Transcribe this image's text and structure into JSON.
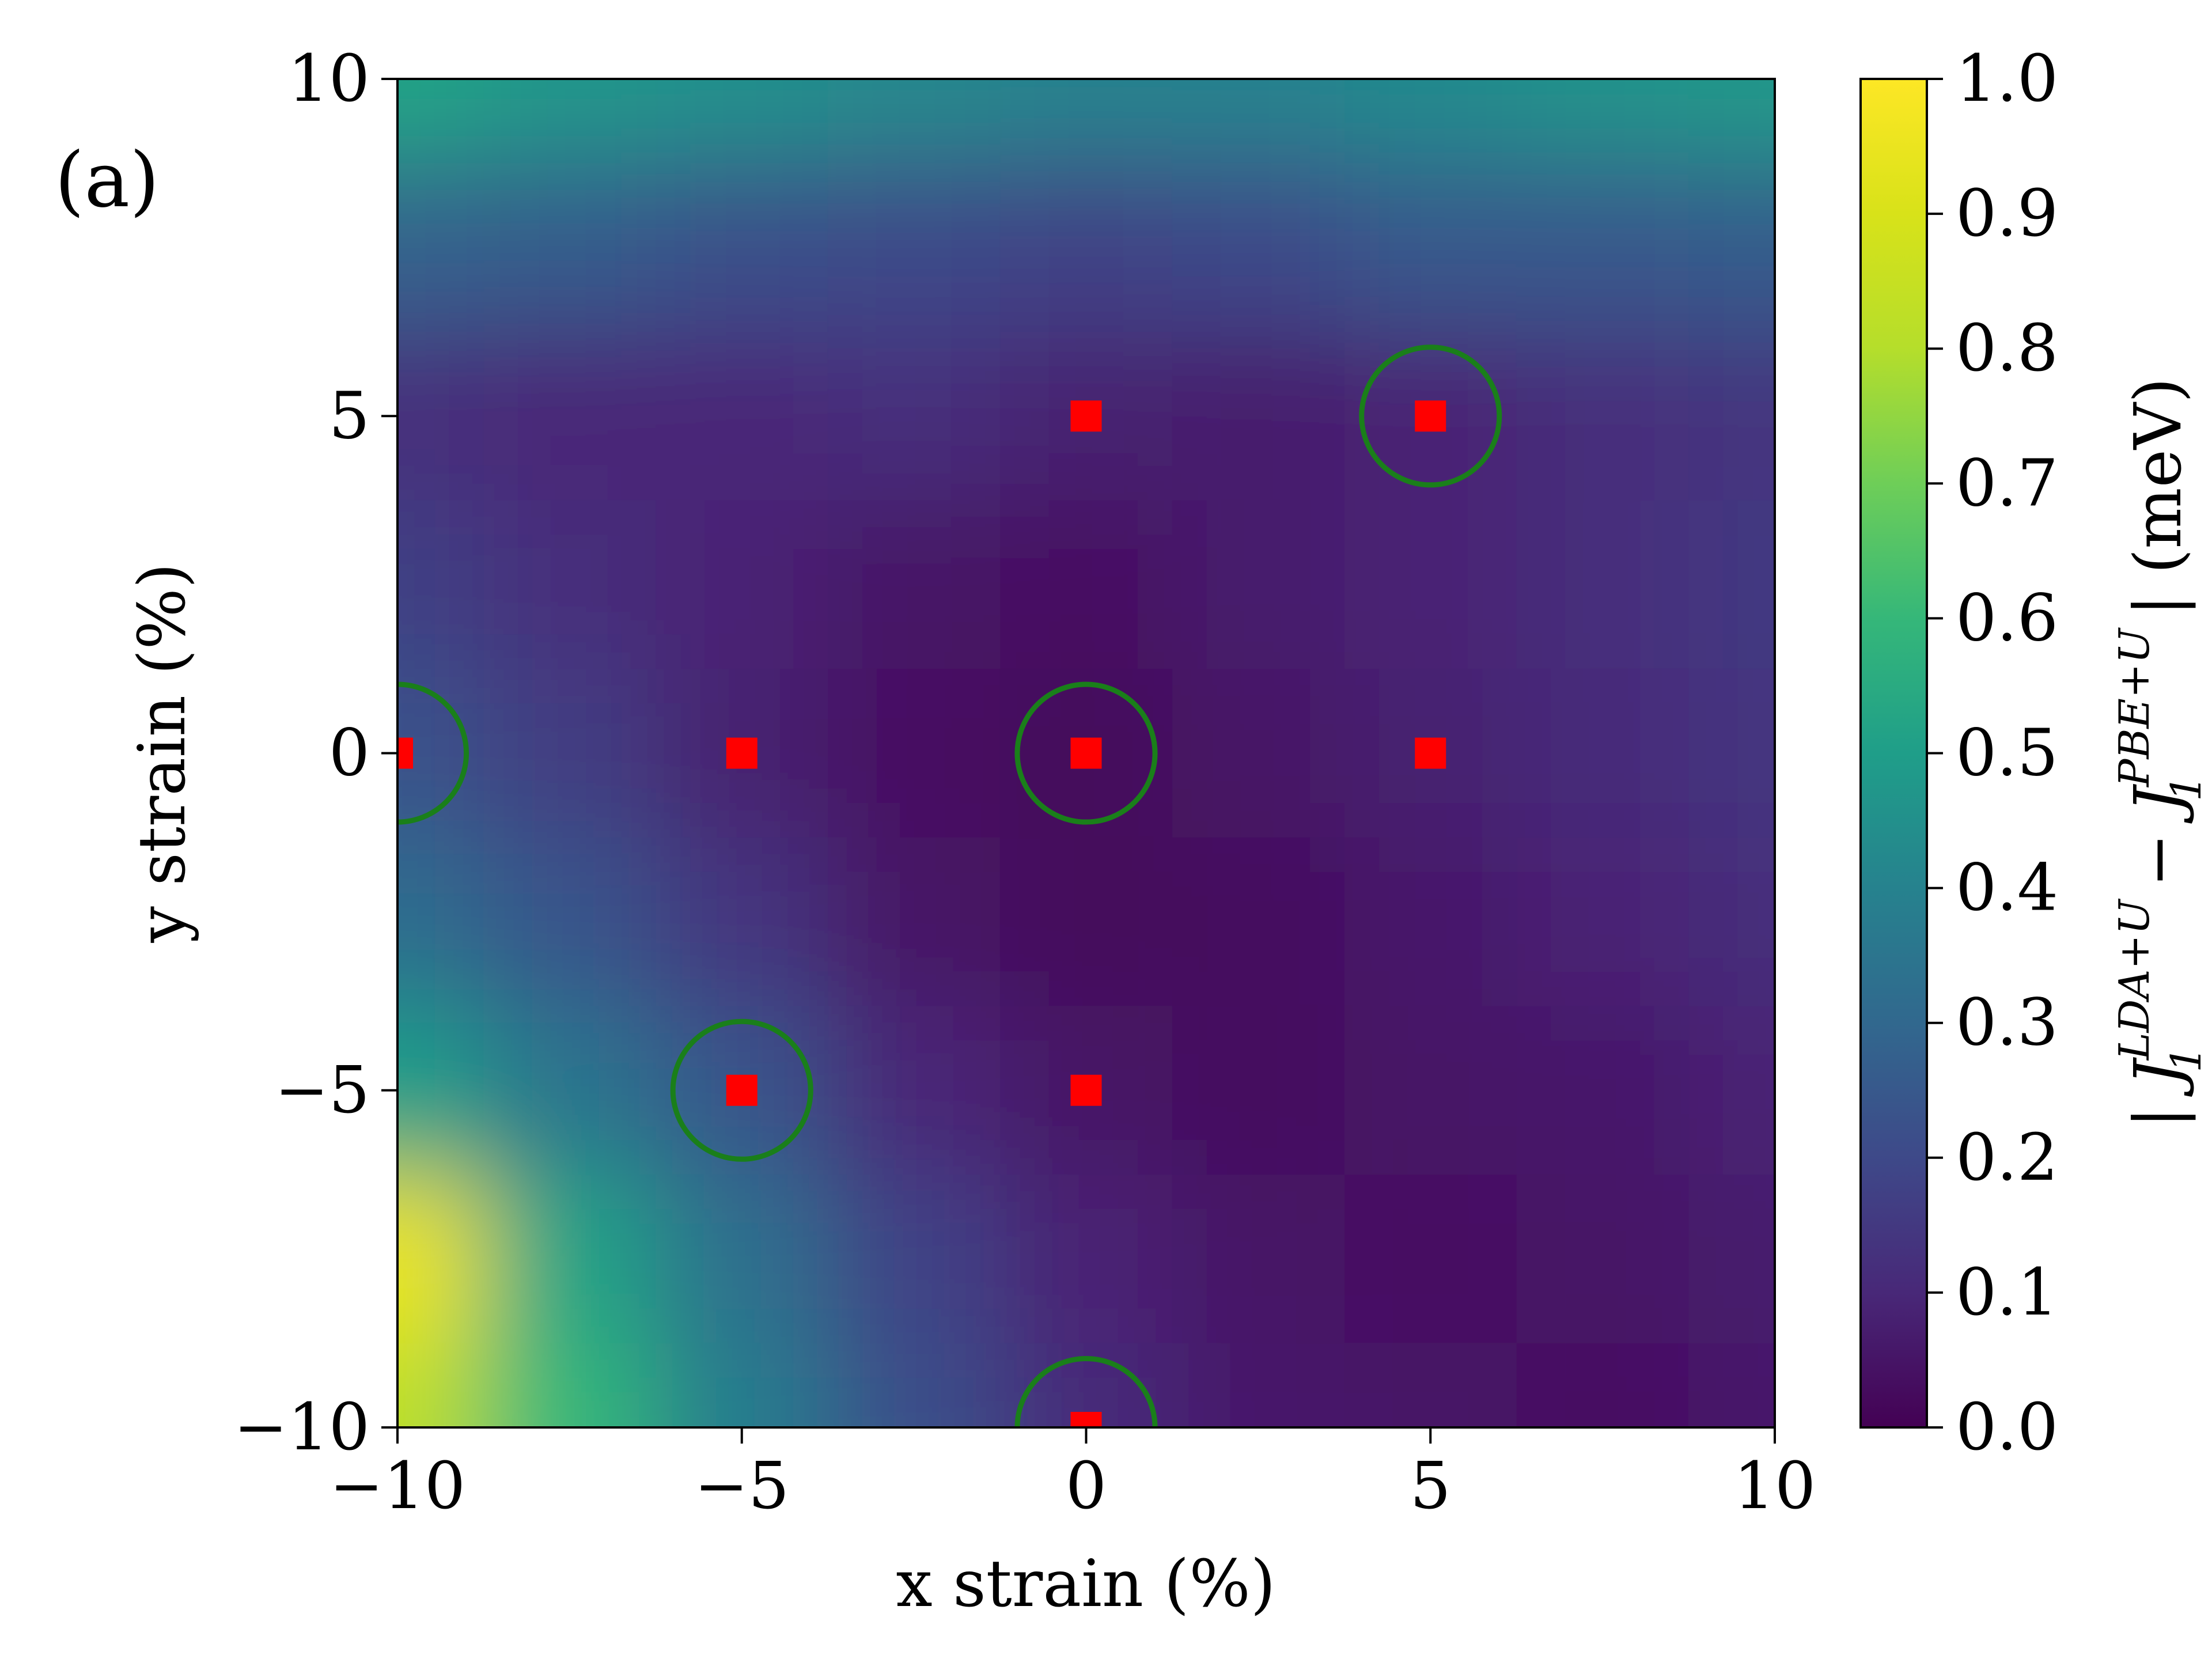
{
  "panel_label": "(a)",
  "chart_data": {
    "type": "heatmap",
    "title": "",
    "xlabel": "x strain (%)",
    "ylabel": "y strain (%)",
    "xlim": [
      -10,
      10
    ],
    "ylim": [
      -10,
      10
    ],
    "xticks": [
      -10,
      -5,
      0,
      5,
      10
    ],
    "yticks": [
      -10,
      -5,
      0,
      5,
      10
    ],
    "colormap": "viridis",
    "colorbar": {
      "label": {
        "prefix": "| J",
        "sub1": "1",
        "sup1": "LDA+U",
        "minus": " − J",
        "sub2": "1",
        "sup2": "PBE+U",
        "suffix": " | (meV)"
      },
      "range": [
        0.0,
        1.0
      ],
      "ticks": [
        "0.0",
        "0.1",
        "0.2",
        "0.3",
        "0.4",
        "0.5",
        "0.6",
        "0.7",
        "0.8",
        "0.9",
        "1.0"
      ]
    },
    "heatmap_x": [
      -10,
      -7.5,
      -5,
      -2.5,
      0,
      2.5,
      5,
      7.5,
      10
    ],
    "heatmap_y": [
      10,
      7.5,
      5,
      2.5,
      0,
      -2.5,
      -5,
      -7.5,
      -10
    ],
    "heatmap_z": [
      [
        0.52,
        0.47,
        0.45,
        0.42,
        0.4,
        0.4,
        0.43,
        0.46,
        0.48
      ],
      [
        0.28,
        0.26,
        0.22,
        0.2,
        0.18,
        0.2,
        0.25,
        0.25,
        0.26
      ],
      [
        0.12,
        0.1,
        0.1,
        0.12,
        0.08,
        0.07,
        0.09,
        0.12,
        0.14
      ],
      [
        0.17,
        0.12,
        0.09,
        0.05,
        0.04,
        0.07,
        0.09,
        0.12,
        0.15
      ],
      [
        0.23,
        0.16,
        0.08,
        0.04,
        0.02,
        0.05,
        0.08,
        0.11,
        0.14
      ],
      [
        0.32,
        0.24,
        0.14,
        0.05,
        0.02,
        0.03,
        0.06,
        0.09,
        0.12
      ],
      [
        0.5,
        0.35,
        0.24,
        0.1,
        0.05,
        0.03,
        0.05,
        0.06,
        0.09
      ],
      [
        0.95,
        0.52,
        0.33,
        0.18,
        0.09,
        0.05,
        0.04,
        0.05,
        0.07
      ],
      [
        0.82,
        0.6,
        0.38,
        0.22,
        0.11,
        0.06,
        0.05,
        0.04,
        0.06
      ]
    ],
    "square_points": {
      "color": "#ff0000",
      "points": [
        [
          0,
          5
        ],
        [
          5,
          5
        ],
        [
          -10,
          0
        ],
        [
          -5,
          0
        ],
        [
          0,
          0
        ],
        [
          5,
          0
        ],
        [
          -5,
          -5
        ],
        [
          0,
          -5
        ],
        [
          0,
          -10
        ]
      ]
    },
    "circle_points": {
      "color": "#1a7f1a",
      "radius_data": 1,
      "points": [
        [
          5,
          5
        ],
        [
          -10,
          0
        ],
        [
          0,
          0
        ],
        [
          -5,
          -5
        ],
        [
          0,
          -10
        ]
      ]
    }
  }
}
